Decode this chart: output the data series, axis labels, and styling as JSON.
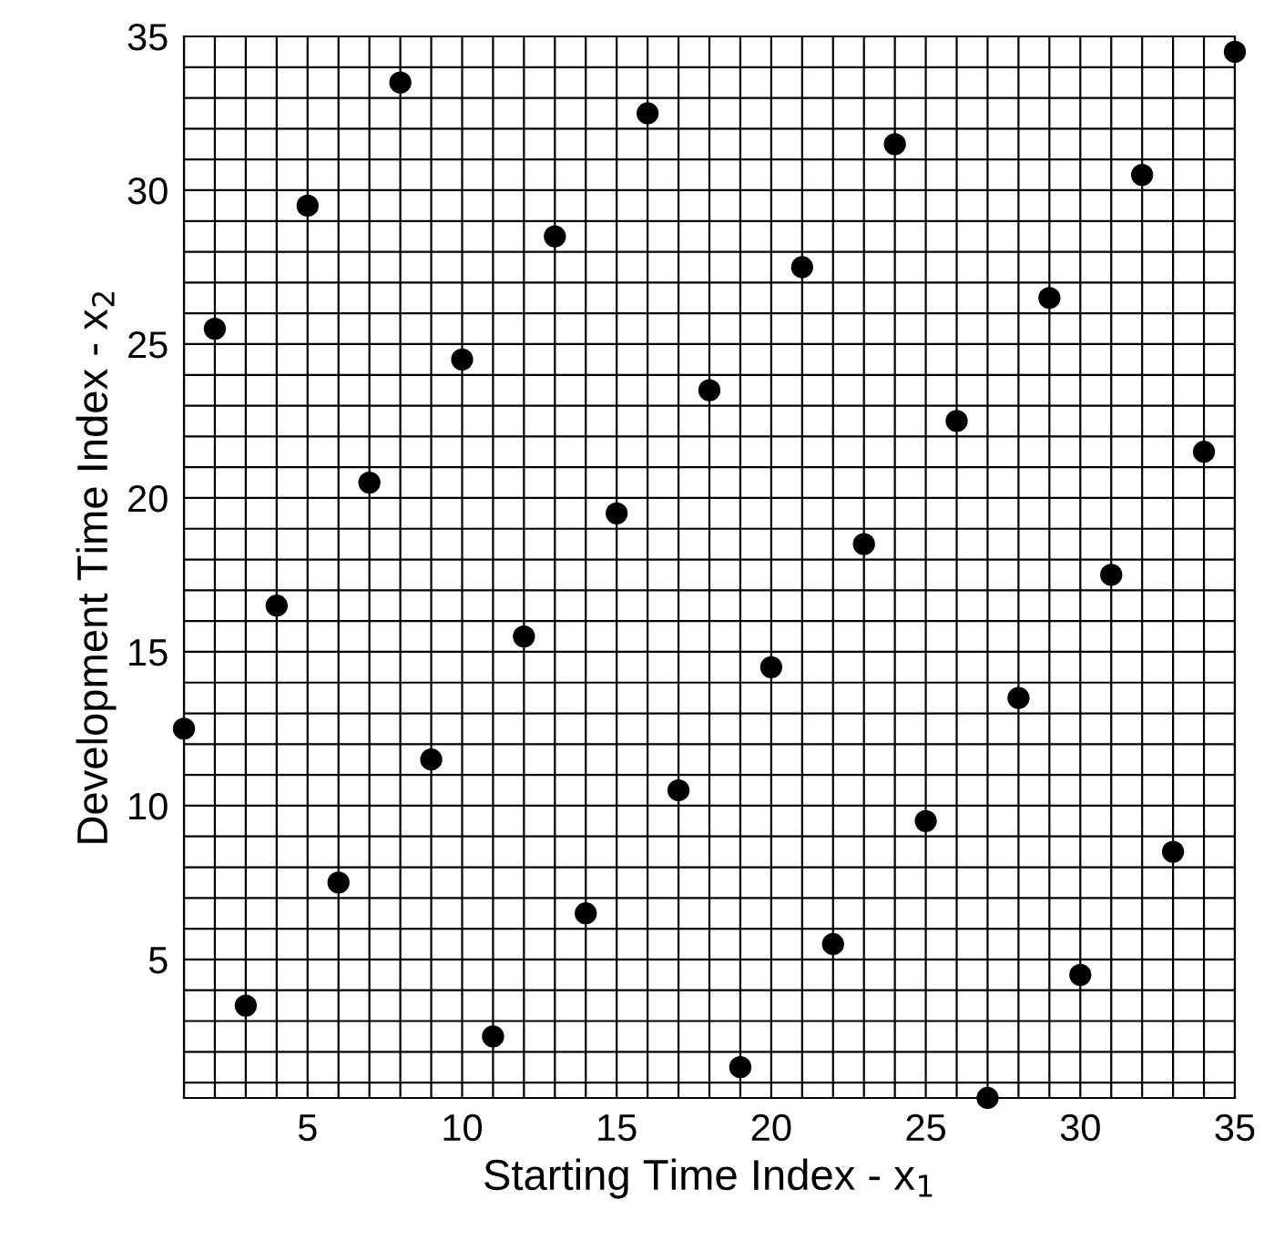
{
  "chart_data": {
    "type": "scatter",
    "xlabel": "Starting Time Index - x$_{1}$",
    "ylabel": "Development Time Index - x$_{2}$",
    "x": [
      1,
      2,
      3,
      4,
      5,
      6,
      7,
      8,
      9,
      10,
      11,
      12,
      13,
      14,
      15,
      16,
      17,
      18,
      19,
      20,
      21,
      22,
      23,
      24,
      25,
      26,
      27,
      28,
      29,
      30,
      31,
      32,
      33,
      34,
      35
    ],
    "series": [
      {
        "color": "#000000",
        "values": [
          12.5,
          25.5,
          3.5,
          16.5,
          29.5,
          7.5,
          20.5,
          33.5,
          11.5,
          24.5,
          2.5,
          15.5,
          28.5,
          6.5,
          19.5,
          32.5,
          10.5,
          23.5,
          1.5,
          14.5,
          27.5,
          5.5,
          18.5,
          31.5,
          9.5,
          22.5,
          0.5,
          13.5,
          26.5,
          4.5,
          17.5,
          30.5,
          8.5,
          21.5,
          34.5
        ]
      }
    ],
    "marker": "circle",
    "xlim": [
      1,
      35
    ],
    "ylim": [
      0.5,
      35
    ],
    "xticks": [
      {
        "value": 1,
        "label": null
      },
      {
        "value": 2,
        "label": null
      },
      {
        "value": 3,
        "label": null
      },
      {
        "value": 4,
        "label": null
      },
      5,
      {
        "value": 6,
        "label": null
      },
      {
        "value": 7,
        "label": null
      },
      {
        "value": 8,
        "label": null
      },
      {
        "value": 9,
        "label": null
      },
      10,
      {
        "value": 11,
        "label": null
      },
      {
        "value": 12,
        "label": null
      },
      {
        "value": 13,
        "label": null
      },
      {
        "value": 14,
        "label": null
      },
      15,
      {
        "value": 16,
        "label": null
      },
      {
        "value": 17,
        "label": null
      },
      {
        "value": 18,
        "label": null
      },
      {
        "value": 19,
        "label": null
      },
      20,
      {
        "value": 21,
        "label": null
      },
      {
        "value": 22,
        "label": null
      },
      {
        "value": 23,
        "label": null
      },
      {
        "value": 24,
        "label": null
      },
      25,
      {
        "value": 26,
        "label": null
      },
      {
        "value": 27,
        "label": null
      },
      {
        "value": 28,
        "label": null
      },
      {
        "value": 29,
        "label": null
      },
      30,
      {
        "value": 31,
        "label": null
      },
      {
        "value": 32,
        "label": null
      },
      {
        "value": 33,
        "label": null
      },
      {
        "value": 34,
        "label": null
      },
      35
    ],
    "yticks": [
      {
        "value": 1,
        "label": null
      },
      {
        "value": 2,
        "label": null
      },
      {
        "value": 3,
        "label": null
      },
      {
        "value": 4,
        "label": null
      },
      5,
      {
        "value": 6,
        "label": null
      },
      {
        "value": 7,
        "label": null
      },
      {
        "value": 8,
        "label": null
      },
      {
        "value": 9,
        "label": null
      },
      10,
      {
        "value": 11,
        "label": null
      },
      {
        "value": 12,
        "label": null
      },
      {
        "value": 13,
        "label": null
      },
      {
        "value": 14,
        "label": null
      },
      15,
      {
        "value": 16,
        "label": null
      },
      {
        "value": 17,
        "label": null
      },
      {
        "value": 18,
        "label": null
      },
      {
        "value": 19,
        "label": null
      },
      20,
      {
        "value": 21,
        "label": null
      },
      {
        "value": 22,
        "label": null
      },
      {
        "value": 23,
        "label": null
      },
      {
        "value": 24,
        "label": null
      },
      25,
      {
        "value": 26,
        "label": null
      },
      {
        "value": 27,
        "label": null
      },
      {
        "value": 28,
        "label": null
      },
      {
        "value": 29,
        "label": null
      },
      30,
      {
        "value": 31,
        "label": null
      },
      {
        "value": 32,
        "label": null
      },
      {
        "value": 33,
        "label": null
      },
      {
        "value": 34,
        "label": null
      },
      35
    ],
    "grid": true
  }
}
